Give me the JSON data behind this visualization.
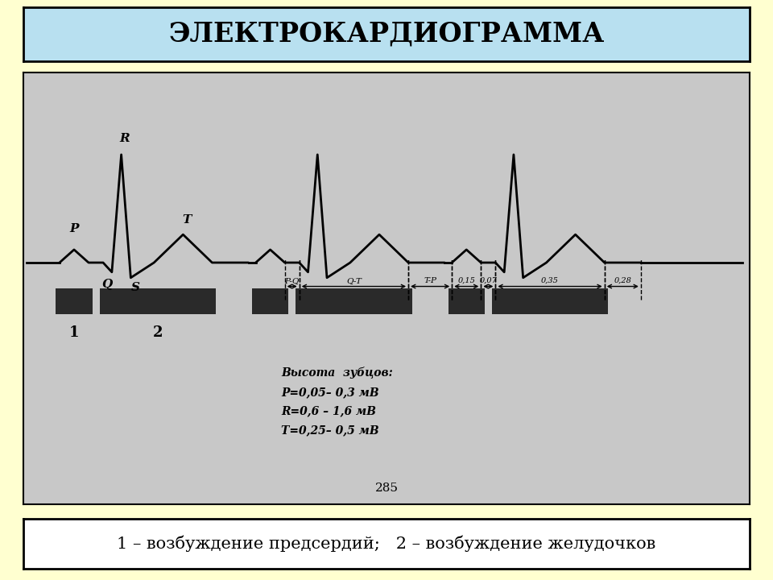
{
  "title": "ЭЛЕКТРОКАРДИОГРАММА",
  "title_bg": "#b8e0f0",
  "title_fontsize": 24,
  "background_color": "#ffffd0",
  "ecg_bg": "#c8c8c8",
  "caption": "1 – возбуждение предсердий;   2 – возбуждение желудочков",
  "caption_fontsize": 15,
  "page_number": "285",
  "height_text": "Высота  зубцов:\nP=0,05– 0,3 мВ\nR=0,6 – 1,6 мВ\nT=0,25– 0,5 мВ"
}
